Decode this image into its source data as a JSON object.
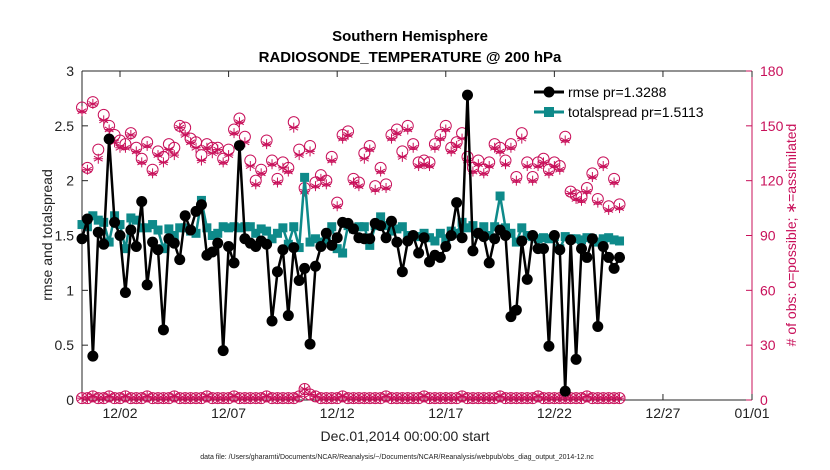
{
  "colors": {
    "rmse": "#000000",
    "spread": "#0e8a8a",
    "obs": "#c8105a",
    "axis": "#262626"
  },
  "chart_data": {
    "type": "line",
    "title": "Southern Hemisphere",
    "subtitle": "RADIOSONDE_TEMPERATURE @ 200 hPa",
    "xlabel": "Dec.01,2014 00:00:00 start",
    "ylabel": "rmse and totalspread",
    "ylabel_right": "# of obs: o=possible; ∗=assimilated",
    "footnote": "data file: /Users/gharamti/Documents/NCAR/Reanalysis/~/Documents/NCAR/Reanalysis/webpub/obs_diag_output_2014-12.nc",
    "xlim": [
      0.25,
      31.1
    ],
    "ylim": [
      0,
      3
    ],
    "ylim_right": [
      0,
      180
    ],
    "xticks": [
      {
        "label": "12/02",
        "x": 2
      },
      {
        "label": "12/07",
        "x": 7
      },
      {
        "label": "12/12",
        "x": 12
      },
      {
        "label": "12/17",
        "x": 17
      },
      {
        "label": "12/22",
        "x": 22
      },
      {
        "label": "12/27",
        "x": 27
      },
      {
        "label": "01/01",
        "x": 32
      }
    ],
    "yticks": [
      "0",
      "0.5",
      "1",
      "1.5",
      "2",
      "2.5",
      "3"
    ],
    "yticks_right": [
      "0",
      "30",
      "60",
      "90",
      "120",
      "150",
      "180"
    ],
    "legend": {
      "position": "top-right",
      "entries": [
        "rmse pr=1.3288",
        "totalspread pr=1.5113"
      ]
    },
    "series": [
      {
        "name": "rmse",
        "x0": 0.25,
        "dx": 0.25,
        "values": [
          1.47,
          1.65,
          0.4,
          1.53,
          1.42,
          2.38,
          1.62,
          1.5,
          0.98,
          1.55,
          1.4,
          1.81,
          1.05,
          1.44,
          1.37,
          0.64,
          1.47,
          1.43,
          1.28,
          1.68,
          1.55,
          1.72,
          1.78,
          1.32,
          1.35,
          1.43,
          0.45,
          1.4,
          1.25,
          2.32,
          1.47,
          1.43,
          1.4,
          1.45,
          1.42,
          0.72,
          1.17,
          1.37,
          0.77,
          1.39,
          1.09,
          1.2,
          0.51,
          1.22,
          1.4,
          1.52,
          1.41,
          1.48,
          1.62,
          1.61,
          1.56,
          1.48,
          1.47,
          1.47,
          1.61,
          1.59,
          1.48,
          1.63,
          1.44,
          1.17,
          1.45,
          1.5,
          1.34,
          1.48,
          1.26,
          1.32,
          1.3,
          1.4,
          1.5,
          1.8,
          1.48,
          2.78,
          1.36,
          1.52,
          1.49,
          1.25,
          1.47,
          1.55,
          1.5,
          0.76,
          0.82,
          1.45,
          1.1,
          1.5,
          1.38,
          1.38,
          0.49,
          1.5,
          1.37,
          0.08,
          1.46,
          0.37,
          1.38,
          1.3,
          1.47,
          0.67,
          1.4,
          1.3,
          1.2,
          1.3
        ]
      },
      {
        "name": "totalspread",
        "x0": 0.25,
        "dx": 0.25,
        "values": [
          1.6,
          1.58,
          1.68,
          1.64,
          1.62,
          1.44,
          1.68,
          1.6,
          1.38,
          1.66,
          1.64,
          1.57,
          1.57,
          1.6,
          1.55,
          1.38,
          1.56,
          1.5,
          1.57,
          1.57,
          1.54,
          1.52,
          1.82,
          1.57,
          1.5,
          1.52,
          1.58,
          1.57,
          1.58,
          1.57,
          1.58,
          1.58,
          1.52,
          1.56,
          1.54,
          1.47,
          1.52,
          1.57,
          1.42,
          1.58,
          1.39,
          2.03,
          1.44,
          1.47,
          1.44,
          1.46,
          1.58,
          1.38,
          1.34,
          1.59,
          1.56,
          1.58,
          1.58,
          1.41,
          1.59,
          1.67,
          1.59,
          1.54,
          1.56,
          1.58,
          1.5,
          1.49,
          1.49,
          1.52,
          1.48,
          1.45,
          1.52,
          1.47,
          1.54,
          1.52,
          1.62,
          1.57,
          1.59,
          1.52,
          1.58,
          1.5,
          1.58,
          1.86,
          1.57,
          1.52,
          1.44,
          1.57,
          1.5,
          1.49,
          1.47,
          1.48,
          1.47,
          1.49,
          1.38,
          1.49,
          1.47,
          1.47,
          1.46,
          1.48,
          1.47,
          1.44,
          1.47,
          1.48,
          1.46,
          1.45
        ]
      },
      {
        "name": "obs_possible",
        "x0": 0.25,
        "dx": 0.25,
        "values": [
          160,
          127,
          163,
          137,
          156,
          150,
          145,
          142,
          140,
          146,
          138,
          132,
          141,
          126,
          136,
          133,
          140,
          138,
          150,
          149,
          143,
          141,
          134,
          140,
          138,
          138,
          132,
          137,
          148,
          154,
          144,
          131,
          120,
          126,
          142,
          131,
          121,
          130,
          127,
          152,
          137,
          116,
          139,
          119,
          123,
          120,
          133,
          108,
          145,
          147,
          121,
          119,
          135,
          139,
          117,
          127,
          118,
          145,
          148,
          136,
          150,
          140,
          130,
          131,
          130,
          140,
          145,
          150,
          138,
          141,
          146,
          133,
          127,
          131,
          126,
          130,
          140,
          138,
          131,
          140,
          122,
          146,
          130,
          122,
          130,
          132,
          126,
          130,
          128,
          144,
          114,
          112,
          111,
          116,
          124,
          110,
          130,
          106,
          121,
          107
        ]
      },
      {
        "name": "obs_assimilated",
        "x0": 0.25,
        "dx": 0.25,
        "values": [
          158,
          126,
          162,
          132,
          153,
          148,
          141,
          138,
          138,
          145,
          136,
          130,
          139,
          124,
          134,
          130,
          137,
          134,
          149,
          145,
          141,
          138,
          131,
          138,
          135,
          137,
          130,
          134,
          146,
          152,
          141,
          128,
          118,
          124,
          140,
          129,
          119,
          127,
          125,
          149,
          134,
          114,
          136,
          117,
          121,
          118,
          131,
          106,
          143,
          145,
          119,
          117,
          132,
          137,
          115,
          125,
          116,
          143,
          146,
          133,
          148,
          138,
          128,
          129,
          128,
          138,
          143,
          148,
          136,
          139,
          143,
          131,
          125,
          129,
          124,
          128,
          138,
          136,
          129,
          138,
          120,
          143,
          128,
          120,
          128,
          130,
          124,
          128,
          126,
          142,
          113,
          110,
          109,
          114,
          122,
          108,
          128,
          104,
          119,
          105
        ]
      },
      {
        "name": "obs_possible_low",
        "x0": 0.25,
        "dx": 0.25,
        "values": [
          1,
          1,
          2,
          1,
          1,
          2,
          1,
          1,
          2,
          1,
          1,
          1,
          2,
          1,
          1,
          1,
          1,
          2,
          1,
          1,
          1,
          1,
          1,
          2,
          1,
          1,
          1,
          1,
          2,
          1,
          1,
          1,
          1,
          1,
          2,
          1,
          1,
          1,
          1,
          1,
          2,
          6,
          3,
          2,
          1,
          1,
          1,
          1,
          2,
          1,
          1,
          1,
          1,
          1,
          1,
          1,
          2,
          1,
          1,
          1,
          1,
          1,
          1,
          2,
          1,
          1,
          1,
          1,
          1,
          1,
          2,
          1,
          1,
          1,
          1,
          1,
          1,
          2,
          1,
          1,
          1,
          1,
          1,
          1,
          2,
          1,
          1,
          1,
          1,
          1,
          1,
          1,
          1,
          2,
          1,
          1,
          1,
          1,
          1,
          1
        ]
      }
    ]
  }
}
